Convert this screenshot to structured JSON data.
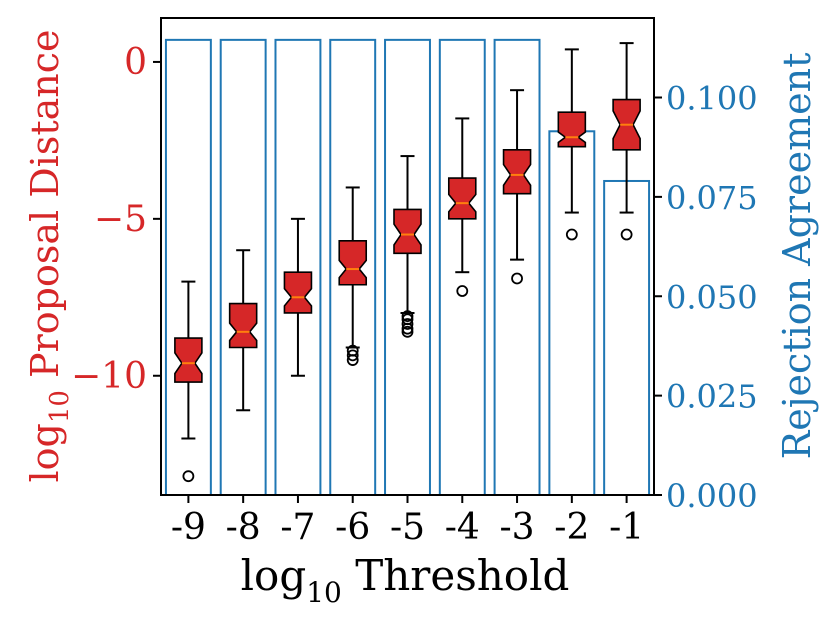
{
  "chart_data": {
    "type": "box+bar",
    "xlabel": "log10 Threshold",
    "ylabel_left": "log10 Proposal Distance",
    "ylabel_right": "Rejection Agreement",
    "categories": [
      "-9",
      "-8",
      "-7",
      "-6",
      "-5",
      "-4",
      "-3",
      "-2",
      "-1"
    ],
    "left_axis": {
      "ylim": [
        -13.8,
        1.4
      ],
      "ticks": [
        0,
        -5,
        -10
      ],
      "tick_labels": [
        "0",
        "−5",
        "−10"
      ],
      "color": "#d62728"
    },
    "right_axis": {
      "ylim": [
        0,
        0.12
      ],
      "ticks": [
        0.1,
        0.075,
        0.05,
        0.025,
        0.0
      ],
      "tick_labels": [
        "0.100",
        "0.075",
        "0.050",
        "0.025",
        "0.000"
      ],
      "color": "#1f77b4"
    },
    "boxes": [
      {
        "category": "-9",
        "whisker_low": -12.0,
        "q1": -10.2,
        "median": -9.6,
        "q3": -8.8,
        "whisker_high": -7.0,
        "outliers": [
          -13.2
        ]
      },
      {
        "category": "-8",
        "whisker_low": -11.1,
        "q1": -9.1,
        "median": -8.6,
        "q3": -7.7,
        "whisker_high": -6.0,
        "outliers": []
      },
      {
        "category": "-7",
        "whisker_low": -10.0,
        "q1": -8.0,
        "median": -7.5,
        "q3": -6.7,
        "whisker_high": -5.0,
        "outliers": []
      },
      {
        "category": "-6",
        "whisker_low": -9.1,
        "q1": -7.1,
        "median": -6.6,
        "q3": -5.7,
        "whisker_high": -4.0,
        "outliers": [
          -9.2,
          -9.35,
          -9.5
        ]
      },
      {
        "category": "-5",
        "whisker_low": -8.0,
        "q1": -6.1,
        "median": -5.5,
        "q3": -4.7,
        "whisker_high": -3.0,
        "outliers": [
          -8.1,
          -8.2,
          -8.35,
          -8.5,
          -8.6
        ]
      },
      {
        "category": "-4",
        "whisker_low": -6.7,
        "q1": -5.0,
        "median": -4.5,
        "q3": -3.7,
        "whisker_high": -1.8,
        "outliers": [
          -7.3
        ]
      },
      {
        "category": "-3",
        "whisker_low": -6.3,
        "q1": -4.2,
        "median": -3.6,
        "q3": -2.8,
        "whisker_high": -0.9,
        "outliers": [
          -6.9
        ]
      },
      {
        "category": "-2",
        "whisker_low": -4.8,
        "q1": -2.7,
        "median": -2.4,
        "q3": -1.6,
        "whisker_high": 0.4,
        "outliers": [
          -5.5
        ]
      },
      {
        "category": "-1",
        "whisker_low": -4.8,
        "q1": -2.8,
        "median": -2.0,
        "q3": -1.2,
        "whisker_high": 0.6,
        "outliers": [
          -5.5
        ]
      }
    ],
    "bars": [
      {
        "category": "-9",
        "value": 0.1145
      },
      {
        "category": "-8",
        "value": 0.1145
      },
      {
        "category": "-7",
        "value": 0.1145
      },
      {
        "category": "-6",
        "value": 0.1145
      },
      {
        "category": "-5",
        "value": 0.1145
      },
      {
        "category": "-4",
        "value": 0.1145
      },
      {
        "category": "-3",
        "value": 0.1145
      },
      {
        "category": "-2",
        "value": 0.0915
      },
      {
        "category": "-1",
        "value": 0.079
      }
    ],
    "colors": {
      "box_fill": "#d62728",
      "median": "#ff7f0e",
      "bar_edge": "#1f77b4",
      "frame": "#000000"
    },
    "grid": false,
    "legend": "none"
  }
}
